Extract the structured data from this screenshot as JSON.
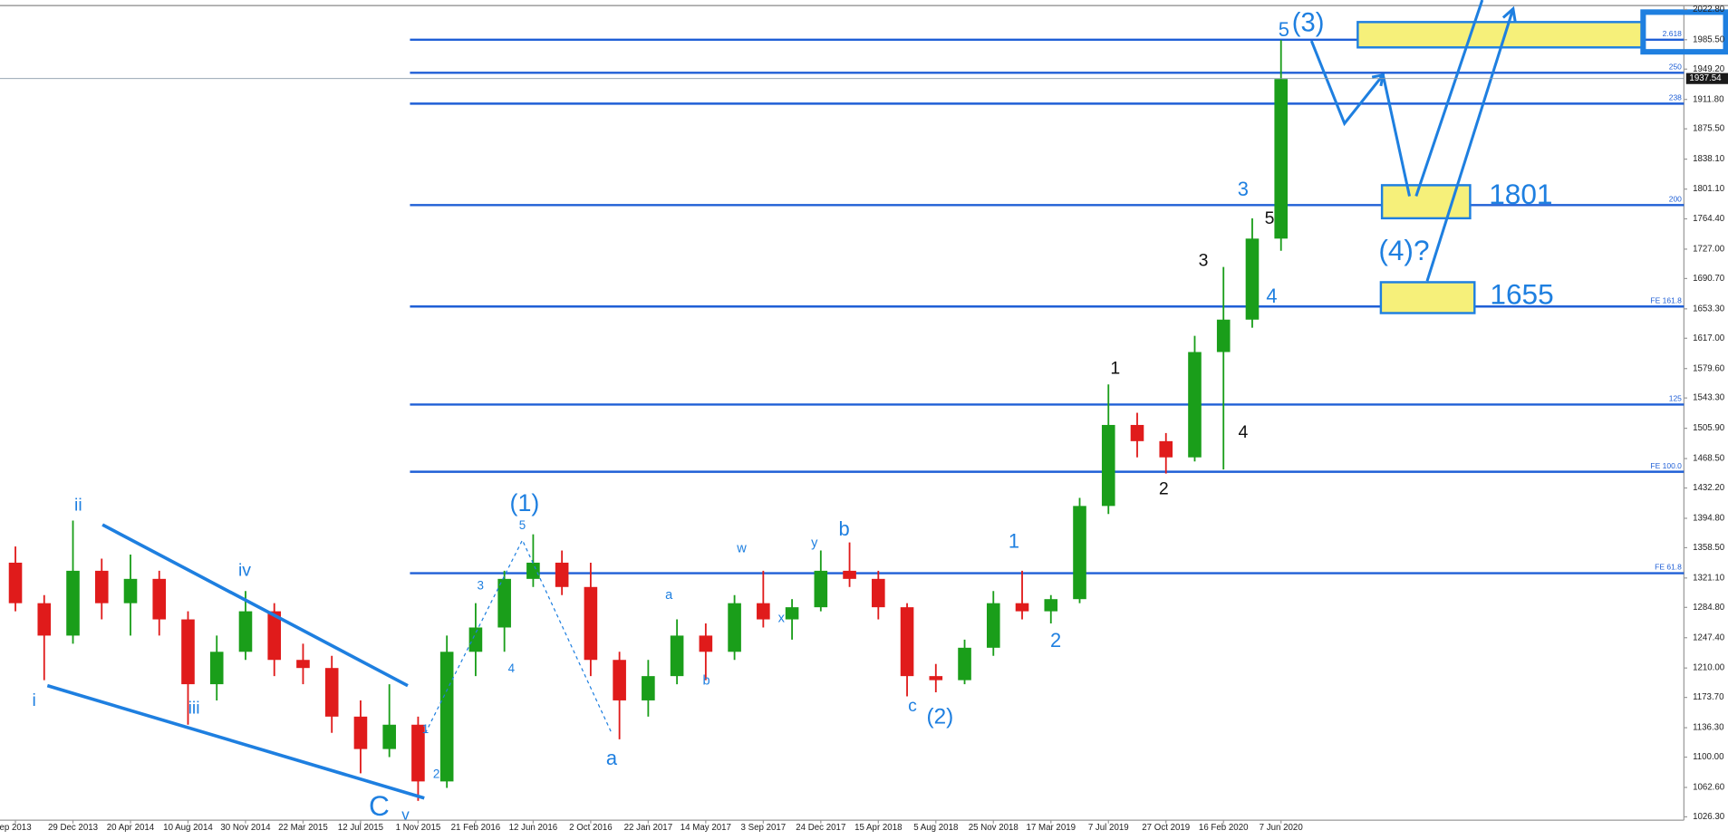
{
  "chart_data": {
    "type": "candlestick",
    "categories": [
      "ep 2013",
      null,
      "29 Dec 2013",
      null,
      "20 Apr 2014",
      null,
      "10 Aug 2014",
      null,
      "30 Nov 2014",
      null,
      "22 Mar 2015",
      null,
      "12 Jul 2015",
      null,
      "1 Nov 2015",
      null,
      "21 Feb 2016",
      null,
      "12 Jun 2016",
      null,
      "2 Oct 2016",
      null,
      "22 Jan 2017",
      null,
      "14 May 2017",
      null,
      "3 Sep 2017",
      null,
      "24 Dec 2017",
      null,
      "15 Apr 2018",
      null,
      "5 Aug 2018",
      null,
      "25 Nov 2018",
      null,
      "17 Mar 2019",
      null,
      "7 Jul 2019",
      null,
      "27 Oct 2019",
      null,
      "16 Feb 2020",
      null,
      "7 Jun 2020"
    ],
    "open": [
      1340,
      1290,
      1250,
      1330,
      1290,
      1320,
      1270,
      1190,
      1230,
      1280,
      1220,
      1210,
      1150,
      1110,
      1140,
      1070,
      1230,
      1260,
      1320,
      1340,
      1310,
      1220,
      1170,
      1200,
      1250,
      1230,
      1290,
      1270,
      1285,
      1330,
      1320,
      1285,
      1200,
      1195,
      1235,
      1290,
      1280,
      1295,
      1410,
      1510,
      1490,
      1470,
      1600,
      1640,
      1740
    ],
    "high": [
      1360,
      1300,
      1392,
      1345,
      1350,
      1330,
      1280,
      1250,
      1305,
      1290,
      1240,
      1225,
      1170,
      1190,
      1150,
      1250,
      1290,
      1330,
      1375,
      1355,
      1340,
      1230,
      1220,
      1270,
      1265,
      1300,
      1330,
      1295,
      1355,
      1365,
      1330,
      1290,
      1215,
      1245,
      1305,
      1330,
      1300,
      1420,
      1560,
      1525,
      1500,
      1620,
      1705,
      1765,
      1985
    ],
    "low": [
      1280,
      1195,
      1240,
      1270,
      1250,
      1250,
      1140,
      1170,
      1220,
      1200,
      1190,
      1130,
      1080,
      1100,
      1046,
      1062,
      1200,
      1230,
      1310,
      1300,
      1200,
      1122,
      1150,
      1190,
      1195,
      1220,
      1260,
      1245,
      1280,
      1310,
      1270,
      1175,
      1180,
      1190,
      1225,
      1270,
      1265,
      1290,
      1400,
      1470,
      1450,
      1465,
      1455,
      1630,
      1725
    ],
    "close": [
      1290,
      1250,
      1330,
      1290,
      1320,
      1270,
      1190,
      1230,
      1280,
      1220,
      1210,
      1150,
      1110,
      1140,
      1070,
      1230,
      1260,
      1320,
      1340,
      1310,
      1220,
      1170,
      1200,
      1250,
      1230,
      1290,
      1270,
      1285,
      1330,
      1320,
      1285,
      1200,
      1195,
      1235,
      1290,
      1280,
      1295,
      1410,
      1510,
      1490,
      1470,
      1600,
      1640,
      1740,
      1937
    ],
    "up_color": "#1a9e1a",
    "down_color": "#e01b1b",
    "level_color": "#1f5fd6",
    "ylim": [
      1022.2,
      2034.5
    ],
    "yticks": [
      {
        "value": 1026.3,
        "label": "1026.30"
      },
      {
        "value": 1062.6,
        "label": "1062.60"
      },
      {
        "value": 1100,
        "label": "1100.00"
      },
      {
        "value": 1136.3,
        "label": "1136.30"
      },
      {
        "value": 1173.7,
        "label": "1173.70"
      },
      {
        "value": 1210,
        "label": "1210.00"
      },
      {
        "value": 1247.4,
        "label": "1247.40"
      },
      {
        "value": 1284.8,
        "label": "1284.80"
      },
      {
        "value": 1321.1,
        "label": "1321.10"
      },
      {
        "value": 1358.5,
        "label": "1358.50"
      },
      {
        "value": 1394.8,
        "label": "1394.80"
      },
      {
        "value": 1432.2,
        "label": "1432.20"
      },
      {
        "value": 1468.5,
        "label": "1468.50"
      },
      {
        "value": 1505.9,
        "label": "1505.90"
      },
      {
        "value": 1543.3,
        "label": "1543.30"
      },
      {
        "value": 1579.6,
        "label": "1579.60"
      },
      {
        "value": 1617,
        "label": "1617.00"
      },
      {
        "value": 1653.3,
        "label": "1653.30"
      },
      {
        "value": 1690.7,
        "label": "1690.70"
      },
      {
        "value": 1727,
        "label": "1727.00"
      },
      {
        "value": 1764.4,
        "label": "1764.40"
      },
      {
        "value": 1801.1,
        "label": "1801.10"
      },
      {
        "value": 1838.1,
        "label": "1838.10"
      },
      {
        "value": 1875.5,
        "label": "1875.50"
      },
      {
        "value": 1911.8,
        "label": "1911.80"
      },
      {
        "value": 1949.2,
        "label": "1949.20"
      },
      {
        "value": 1985.5,
        "label": "1985.50"
      },
      {
        "value": 2022.8,
        "label": "2022.80"
      }
    ],
    "levels": [
      {
        "value": 1985.5,
        "label": "2.618"
      },
      {
        "value": 1944.7,
        "label": "250"
      },
      {
        "value": 1906.6,
        "label": "238"
      },
      {
        "value": 1781.4,
        "label": "200"
      },
      {
        "value": 1656.2,
        "label": "FE 161.8"
      },
      {
        "value": 1535.2,
        "label": "125"
      },
      {
        "value": 1452.2,
        "label": "FE 100.0"
      },
      {
        "value": 1327,
        "label": "FE 61.8"
      }
    ],
    "last_price": 1937.54,
    "annotations": [
      "ii",
      "i",
      "iv",
      "iii",
      "C",
      "v",
      "1",
      "2",
      "3",
      "4",
      "5",
      "(1)",
      "a",
      "a",
      "b",
      "w",
      "x",
      "y",
      "b",
      "c",
      "(2)",
      "1",
      "2",
      "1",
      "2",
      "3",
      "4",
      "5",
      "3",
      "4",
      "5",
      "(3)",
      "(4)?",
      "1801",
      "1655"
    ]
  }
}
